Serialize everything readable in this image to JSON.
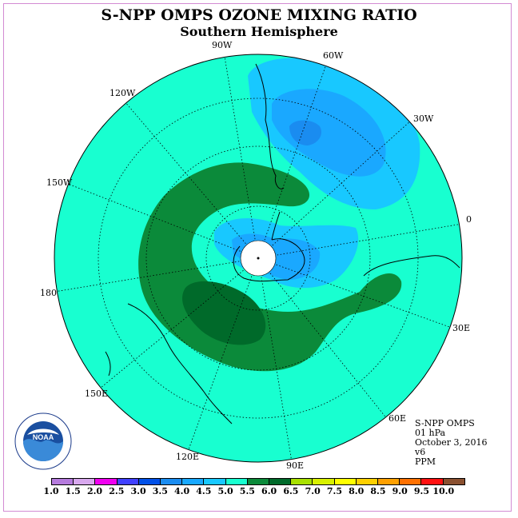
{
  "title": "S-NPP OMPS OZONE MIXING RATIO",
  "subtitle": "Southern Hemisphere",
  "longitude_labels": {
    "w90": "90W",
    "w60": "60W",
    "w30": "30W",
    "w120": "120W",
    "w150": "150W",
    "e0": "0",
    "d180": "180",
    "e30": "30E",
    "e60": "60E",
    "e90": "90E",
    "e120": "120E",
    "e150": "150E"
  },
  "info": {
    "instrument": "S-NPP OMPS",
    "level": "01 hPa",
    "date": "October 3, 2016",
    "version": "v6",
    "units": "PPM"
  },
  "colorbar": {
    "ticks": [
      "1.0",
      "1.5",
      "2.0",
      "2.5",
      "3.0",
      "3.5",
      "4.0",
      "4.5",
      "5.0",
      "5.5",
      "6.0",
      "6.5",
      "7.0",
      "7.5",
      "8.0",
      "8.5",
      "9.0",
      "9.5",
      "10.0"
    ],
    "colors": [
      "#b57bdd",
      "#d8a8ee",
      "#f000f0",
      "#4040ff",
      "#0050e8",
      "#1a8cf0",
      "#18a8ff",
      "#18c8ff",
      "#18ffd0",
      "#0b8a3a",
      "#006a2a",
      "#a8e000",
      "#d8f000",
      "#ffff00",
      "#ffd000",
      "#ffa000",
      "#ff7000",
      "#ff1010",
      "#8a5030"
    ]
  },
  "palette": {
    "ocean_fill": "#18ffd0",
    "band_55": "#0b8a3a",
    "band_60": "#006a2a",
    "band_40": "#18c8ff",
    "band_35": "#1aa8ff",
    "band_30": "#1a8cf0"
  },
  "logo": {
    "text": "NOAA",
    "ring_text": "NATIONAL OCEANIC AND ATMOSPHERIC ADMINISTRATION · U.S. DEPARTMENT OF COMMERCE"
  }
}
